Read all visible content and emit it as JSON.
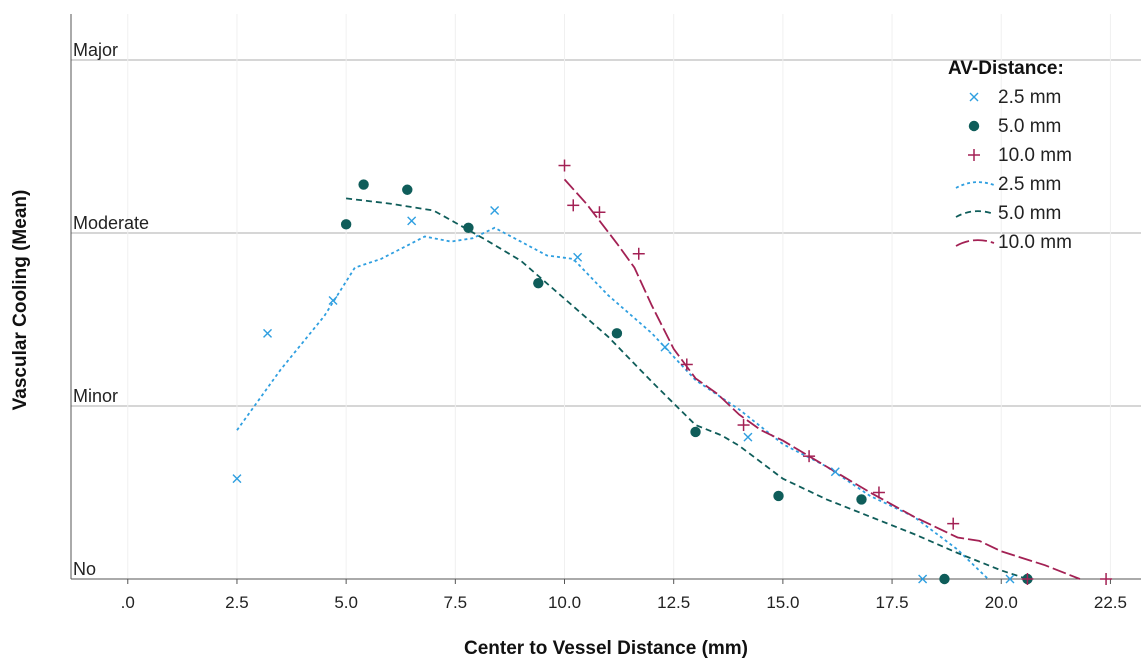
{
  "chart_data": {
    "type": "scatter",
    "xlabel": "Center to Vessel Distance (mm)",
    "ylabel": "Vascular Cooling (Mean)",
    "xlim": [
      -1.3,
      23.2
    ],
    "ylim": [
      0,
      3.1
    ],
    "x_ticks": [
      0,
      2.5,
      5,
      7.5,
      10,
      12.5,
      15,
      17.5,
      20,
      22.5
    ],
    "x_tick_labels": [
      ".0",
      "2.5",
      "5.0",
      "7.5",
      "10.0",
      "12.5",
      "15.0",
      "17.5",
      "20.0",
      "22.5"
    ],
    "y_categories": [
      {
        "label": "No",
        "value": 0
      },
      {
        "label": "Minor",
        "value": 1
      },
      {
        "label": "Moderate",
        "value": 2
      },
      {
        "label": "Major",
        "value": 3
      }
    ],
    "grid": true,
    "legend_title": "AV-Distance:",
    "legend_position": "top-right",
    "colors": {
      "s25": "#2f9fe0",
      "s50": "#0f5d5a",
      "s100": "#a32154"
    },
    "scatter_series": [
      {
        "name": "2.5 mm",
        "marker": "x",
        "color_key": "s25",
        "x": [
          2.5,
          3.2,
          4.7,
          6.5,
          8.4,
          10.3,
          12.3,
          14.2,
          16.2,
          18.2,
          20.2
        ],
        "y": [
          0.58,
          1.42,
          1.61,
          2.07,
          2.13,
          1.86,
          1.34,
          0.82,
          0.62,
          0.0,
          0.0
        ]
      },
      {
        "name": "5.0 mm",
        "marker": "dot",
        "color_key": "s50",
        "x": [
          5.0,
          5.4,
          6.4,
          7.8,
          9.4,
          11.2,
          13.0,
          14.9,
          16.8,
          18.7,
          20.6
        ],
        "y": [
          2.05,
          2.28,
          2.25,
          2.03,
          1.71,
          1.42,
          0.85,
          0.48,
          0.46,
          0.0,
          0.0
        ]
      },
      {
        "name": "10.0 mm",
        "marker": "plus",
        "color_key": "s100",
        "x": [
          10.0,
          10.2,
          10.8,
          11.7,
          12.8,
          14.1,
          15.6,
          17.2,
          18.9,
          20.6,
          22.4
        ],
        "y": [
          2.39,
          2.16,
          2.12,
          1.88,
          1.24,
          0.89,
          0.71,
          0.5,
          0.32,
          0.0,
          0.0
        ]
      }
    ],
    "line_series": [
      {
        "name": "2.5 mm",
        "dash": "3 3",
        "color_key": "s25",
        "x": [
          2.5,
          3.5,
          4.5,
          5.2,
          5.8,
          6.8,
          7.4,
          7.9,
          8.4,
          9.0,
          9.6,
          10.2,
          11.0,
          12.0,
          13.0,
          14.0,
          15.0,
          16.0,
          17.0,
          18.0,
          19.0,
          19.7
        ],
        "y": [
          0.86,
          1.21,
          1.52,
          1.8,
          1.85,
          1.98,
          1.95,
          1.97,
          2.03,
          1.95,
          1.87,
          1.85,
          1.64,
          1.42,
          1.15,
          0.98,
          0.78,
          0.65,
          0.48,
          0.36,
          0.17,
          0.0
        ]
      },
      {
        "name": "5.0 mm",
        "dash": "6 4",
        "color_key": "s50",
        "x": [
          5.0,
          6.0,
          7.0,
          7.5,
          8.2,
          9.0,
          10.0,
          11.0,
          12.0,
          13.0,
          13.6,
          14.0,
          15.0,
          16.0,
          17.0,
          18.0,
          19.0,
          20.0,
          20.6
        ],
        "y": [
          2.2,
          2.17,
          2.13,
          2.06,
          1.96,
          1.84,
          1.62,
          1.4,
          1.14,
          0.89,
          0.83,
          0.77,
          0.58,
          0.46,
          0.36,
          0.26,
          0.15,
          0.05,
          0.0
        ]
      },
      {
        "name": "10.0 mm",
        "dash": "14 4",
        "color_key": "s100",
        "x": [
          10.0,
          10.5,
          11.2,
          11.6,
          12.0,
          12.5,
          13.0,
          13.5,
          14.0,
          14.5,
          15.0,
          16.0,
          17.0,
          18.0,
          19.0,
          19.5,
          20.0,
          21.0,
          21.8
        ],
        "y": [
          2.31,
          2.17,
          1.94,
          1.8,
          1.58,
          1.33,
          1.16,
          1.07,
          0.95,
          0.86,
          0.8,
          0.65,
          0.5,
          0.36,
          0.24,
          0.22,
          0.16,
          0.08,
          0.0
        ]
      }
    ]
  }
}
